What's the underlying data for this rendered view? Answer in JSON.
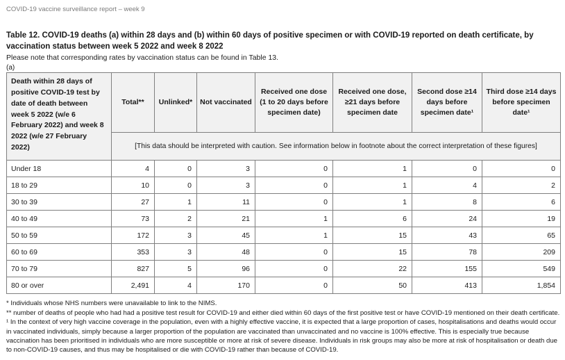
{
  "page": {
    "header": "COVID-19 vaccine surveillance report – week 9",
    "title": "Table 12. COVID-19 deaths (a) within 28 days and (b) within 60 days of positive specimen or with COVID-19 reported on death certificate, by vaccination status between week 5 2022 and week 8 2022",
    "subtitle": "Please note that corresponding rates by vaccination status can be found in Table 13.",
    "section_label": "(a)"
  },
  "table": {
    "row_header": "Death within 28 days of positive COVID-19 test by date of death between week 5 2022 (w/e 6 February 2022) and week 8 2022 (w/e 27 February 2022)",
    "columns": [
      "Total**",
      "Unlinked*",
      "Not vaccinated",
      "Received one dose (1 to 20 days before specimen date)",
      "Received one dose, ≥21 days before specimen date",
      "Second dose ≥14 days before specimen date¹",
      "Third dose ≥14 days before specimen date¹"
    ],
    "caution_note": "[This data should be interpreted with caution. See information below in footnote about the correct interpretation of these figures]",
    "rows": [
      {
        "label": "Under 18",
        "values": [
          "4",
          "0",
          "3",
          "0",
          "1",
          "0",
          "0"
        ]
      },
      {
        "label": "18 to 29",
        "values": [
          "10",
          "0",
          "3",
          "0",
          "1",
          "4",
          "2"
        ]
      },
      {
        "label": "30 to 39",
        "values": [
          "27",
          "1",
          "11",
          "0",
          "1",
          "8",
          "6"
        ]
      },
      {
        "label": "40 to 49",
        "values": [
          "73",
          "2",
          "21",
          "1",
          "6",
          "24",
          "19"
        ]
      },
      {
        "label": "50 to 59",
        "values": [
          "172",
          "3",
          "45",
          "1",
          "15",
          "43",
          "65"
        ]
      },
      {
        "label": "60 to 69",
        "values": [
          "353",
          "3",
          "48",
          "0",
          "15",
          "78",
          "209"
        ]
      },
      {
        "label": "70 to 79",
        "values": [
          "827",
          "5",
          "96",
          "0",
          "22",
          "155",
          "549"
        ]
      },
      {
        "label": "80 or over",
        "values": [
          "2,491",
          "4",
          "170",
          "0",
          "50",
          "413",
          "1,854"
        ]
      }
    ]
  },
  "footnotes": [
    "* Individuals whose NHS numbers were unavailable to link to the NIMS.",
    "** number of deaths of people who had had a positive test result for COVID-19 and either died within 60 days of the first positive test or have COVID-19 mentioned on their death certificate.",
    "¹ In the context of very high vaccine coverage in the population, even with a highly effective vaccine, it is expected that a large proportion of cases, hospitalisations and deaths would occur in vaccinated individuals, simply because a larger proportion of the population are vaccinated than unvaccinated and no vaccine is 100% effective. This is especially true because vaccination has been prioritised in individuals who are more susceptible or more at risk of severe disease. Individuals in risk groups may also be more at risk of hospitalisation or death due to non-COVID-19 causes, and thus may be hospitalised or die with COVID-19 rather than because of COVID-19."
  ]
}
